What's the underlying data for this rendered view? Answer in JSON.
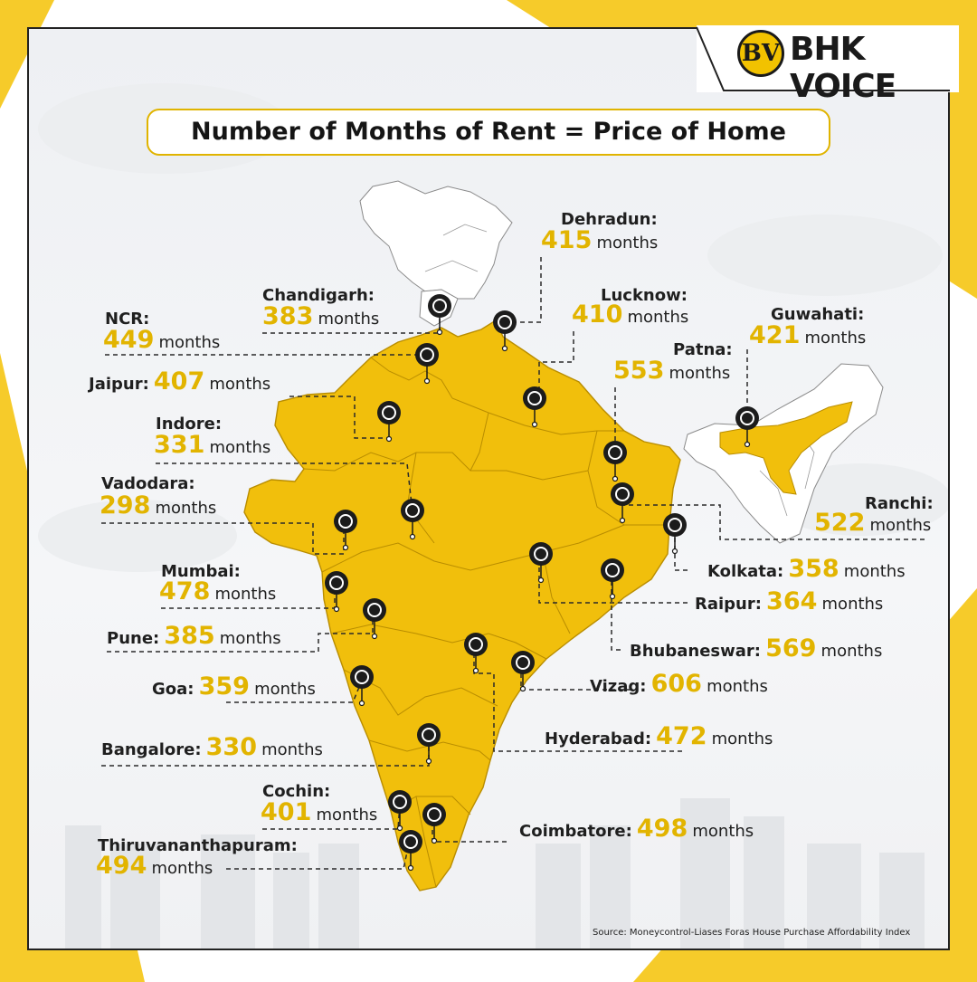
{
  "brand": {
    "logo_letters": "BV",
    "name": "BHK VOICE"
  },
  "title": "Number of Months of Rent = Price of Home",
  "unit": "months",
  "colors": {
    "accent": "#f2c200",
    "value": "#e2b400",
    "map_fill": "#f1bf0c",
    "border": "#b98d00",
    "text": "#1f1f1f"
  },
  "cities": [
    {
      "name": "Dehradun:",
      "value": "415"
    },
    {
      "name": "Chandigarh:",
      "value": "383"
    },
    {
      "name": "Lucknow:",
      "value": "410"
    },
    {
      "name": "NCR:",
      "value": "449"
    },
    {
      "name": "Guwahati:",
      "value": "421"
    },
    {
      "name": "Patna:",
      "value": "553"
    },
    {
      "name": "Jaipur:",
      "value": "407"
    },
    {
      "name": "Indore:",
      "value": "331"
    },
    {
      "name": "Vadodara:",
      "value": "298"
    },
    {
      "name": "Ranchi:",
      "value": "522"
    },
    {
      "name": "Kolkata:",
      "value": "358"
    },
    {
      "name": "Mumbai:",
      "value": "478"
    },
    {
      "name": "Raipur:",
      "value": "364"
    },
    {
      "name": "Pune:",
      "value": "385"
    },
    {
      "name": "Bhubaneswar:",
      "value": "569"
    },
    {
      "name": "Goa:",
      "value": "359"
    },
    {
      "name": "Vizag:",
      "value": "606"
    },
    {
      "name": "Bangalore:",
      "value": "330"
    },
    {
      "name": "Hyderabad:",
      "value": "472"
    },
    {
      "name": "Cochin:",
      "value": "401"
    },
    {
      "name": "Coimbatore:",
      "value": "498"
    },
    {
      "name": "Thiruvananthapuram:",
      "value": "494"
    }
  ],
  "source": "Source: Moneycontrol-Liases Foras House Purchase Affordability Index"
}
